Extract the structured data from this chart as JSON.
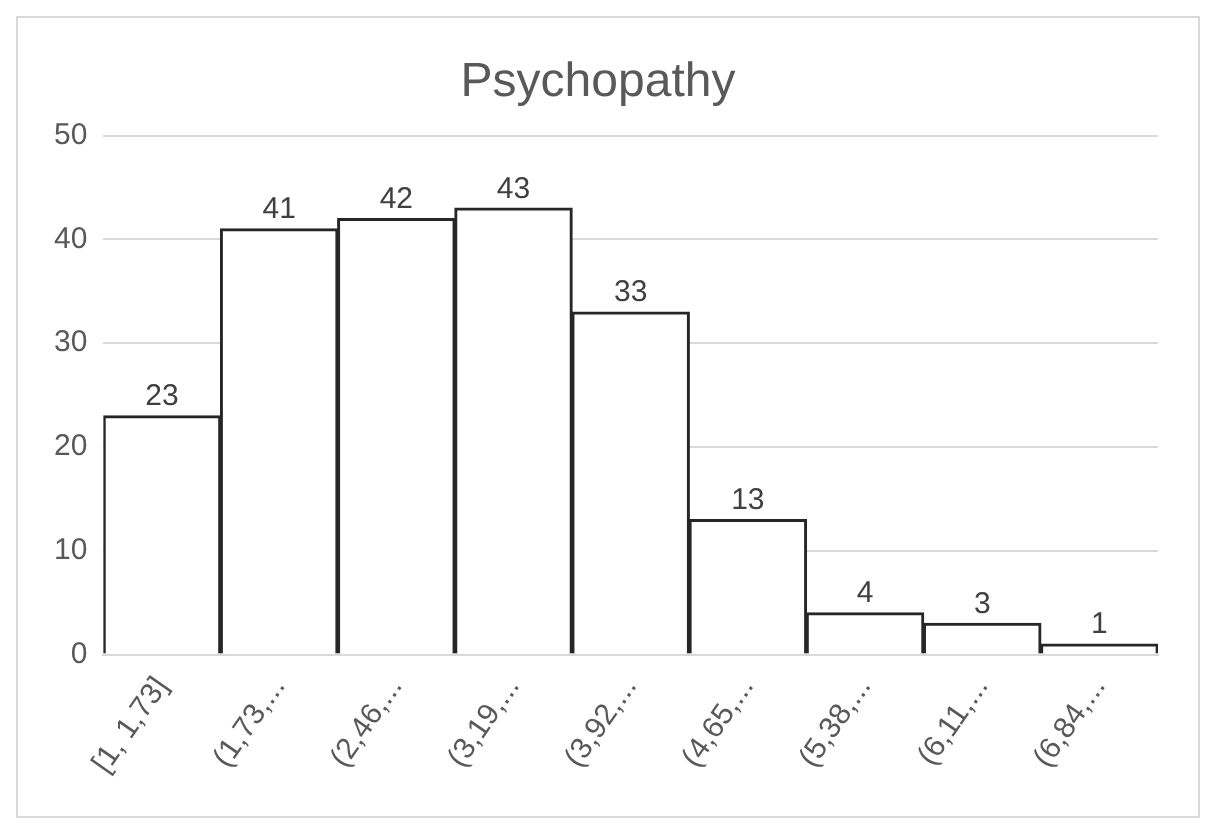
{
  "chart_data": {
    "type": "bar",
    "title": "Psychopathy",
    "categories": [
      "[1, 1,73]",
      "(1,73,...",
      "(2,46,...",
      "(3,19,...",
      "(3,92,...",
      "(4,65,...",
      "(5,38,...",
      "(6,11,...",
      "(6,84,..."
    ],
    "values": [
      23,
      41,
      42,
      43,
      33,
      13,
      4,
      3,
      1
    ],
    "color": "#ffffff",
    "ylim": [
      0,
      50
    ],
    "yticks": [
      0,
      10,
      20,
      30,
      40,
      50
    ],
    "grid": "y",
    "legend": false,
    "data_labels": true
  }
}
